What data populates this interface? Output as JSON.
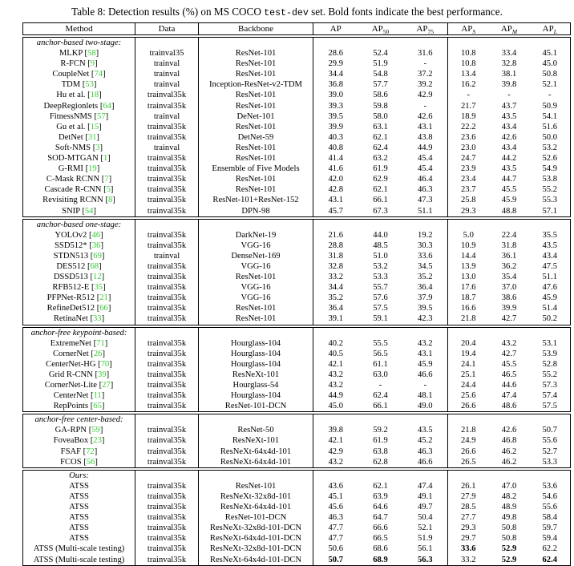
{
  "colors": {
    "citation_green": "#33cc33",
    "text": "#000000",
    "background": "#ffffff"
  },
  "title": {
    "prefix": "Table 8: Detection results (%) on MS COCO ",
    "code": "test-dev",
    "suffix": " set. Bold fonts indicate the best performance."
  },
  "table": {
    "headers": [
      {
        "text": "Method"
      },
      {
        "text": "Data"
      },
      {
        "text": "Backbone"
      },
      {
        "text": "AP",
        "sub": ""
      },
      {
        "text": "AP",
        "sub": "50",
        "italicSub": false
      },
      {
        "text": "AP",
        "sub": "75",
        "italicSub": false
      },
      {
        "text": "AP",
        "sub": "S",
        "italicSub": true
      },
      {
        "text": "AP",
        "sub": "M",
        "italicSub": true
      },
      {
        "text": "AP",
        "sub": "L",
        "italicSub": true
      }
    ],
    "sections": [
      {
        "label": "anchor-based two-stage:",
        "rows": [
          {
            "method": "MLKP",
            "cite": "58",
            "data": "trainval35",
            "backbone": "ResNet-101",
            "values": [
              "28.6",
              "52.4",
              "31.6",
              "10.8",
              "33.4",
              "45.1"
            ]
          },
          {
            "method": "R-FCN",
            "cite": "9",
            "data": "trainval",
            "backbone": "ResNet-101",
            "values": [
              "29.9",
              "51.9",
              "-",
              "10.8",
              "32.8",
              "45.0"
            ]
          },
          {
            "method": "CoupleNet",
            "cite": "74",
            "data": "trainval",
            "backbone": "ResNet-101",
            "values": [
              "34.4",
              "54.8",
              "37.2",
              "13.4",
              "38.1",
              "50.8"
            ]
          },
          {
            "method": "TDM",
            "cite": "53",
            "data": "trainval",
            "backbone": "Inception-ResNet-v2-TDM",
            "values": [
              "36.8",
              "57.7",
              "39.2",
              "16.2",
              "39.8",
              "52.1"
            ]
          },
          {
            "method": "Hu et al.",
            "cite": "18",
            "data": "trainval35k",
            "backbone": "ResNet-101",
            "values": [
              "39.0",
              "58.6",
              "42.9",
              "-",
              "-",
              "-"
            ]
          },
          {
            "method": "DeepRegionlets",
            "cite": "64",
            "data": "trainval35k",
            "backbone": "ResNet-101",
            "values": [
              "39.3",
              "59.8",
              "-",
              "21.7",
              "43.7",
              "50.9"
            ]
          },
          {
            "method": "FitnessNMS",
            "cite": "57",
            "data": "trainval",
            "backbone": "DeNet-101",
            "values": [
              "39.5",
              "58.0",
              "42.6",
              "18.9",
              "43.5",
              "54.1"
            ]
          },
          {
            "method": "Gu et al.",
            "cite": "15",
            "data": "trainval35k",
            "backbone": "ResNet-101",
            "values": [
              "39.9",
              "63.1",
              "43.1",
              "22.2",
              "43.4",
              "51.6"
            ]
          },
          {
            "method": "DetNet",
            "cite": "31",
            "data": "trainval35k",
            "backbone": "DetNet-59",
            "values": [
              "40.3",
              "62.1",
              "43.8",
              "23.6",
              "42.6",
              "50.0"
            ]
          },
          {
            "method": "Soft-NMS",
            "cite": "3",
            "data": "trainval",
            "backbone": "ResNet-101",
            "values": [
              "40.8",
              "62.4",
              "44.9",
              "23.0",
              "43.4",
              "53.2"
            ]
          },
          {
            "method": "SOD-MTGAN",
            "cite": "1",
            "data": "trainval35k",
            "backbone": "ResNet-101",
            "values": [
              "41.4",
              "63.2",
              "45.4",
              "24.7",
              "44.2",
              "52.6"
            ]
          },
          {
            "method": "G-RMI",
            "cite": "19",
            "data": "trainval35k",
            "backbone": "Ensemble of Five Models",
            "values": [
              "41.6",
              "61.9",
              "45.4",
              "23.9",
              "43.5",
              "54.9"
            ]
          },
          {
            "method": "C-Mask RCNN",
            "cite": "7",
            "data": "trainval35k",
            "backbone": "ResNet-101",
            "values": [
              "42.0",
              "62.9",
              "46.4",
              "23.4",
              "44.7",
              "53.8"
            ]
          },
          {
            "method": "Cascade R-CNN",
            "cite": "5",
            "data": "trainval35k",
            "backbone": "ResNet-101",
            "values": [
              "42.8",
              "62.1",
              "46.3",
              "23.7",
              "45.5",
              "55.2"
            ]
          },
          {
            "method": "Revisiting RCNN",
            "cite": "8",
            "data": "trainval35k",
            "backbone": "ResNet-101+ResNet-152",
            "values": [
              "43.1",
              "66.1",
              "47.3",
              "25.8",
              "45.9",
              "55.3"
            ]
          },
          {
            "method": "SNIP",
            "cite": "54",
            "data": "trainval35k",
            "backbone": "DPN-98",
            "values": [
              "45.7",
              "67.3",
              "51.1",
              "29.3",
              "48.8",
              "57.1"
            ]
          }
        ]
      },
      {
        "label": "anchor-based one-stage:",
        "rows": [
          {
            "method": "YOLOv2",
            "cite": "46",
            "data": "trainval35k",
            "backbone": "DarkNet-19",
            "values": [
              "21.6",
              "44.0",
              "19.2",
              "5.0",
              "22.4",
              "35.5"
            ]
          },
          {
            "method": "SSD512*",
            "cite": "36",
            "data": "trainval35k",
            "backbone": "VGG-16",
            "values": [
              "28.8",
              "48.5",
              "30.3",
              "10.9",
              "31.8",
              "43.5"
            ]
          },
          {
            "method": "STDN513",
            "cite": "69",
            "data": "trainval",
            "backbone": "DenseNet-169",
            "values": [
              "31.8",
              "51.0",
              "33.6",
              "14.4",
              "36.1",
              "43.4"
            ]
          },
          {
            "method": "DES512",
            "cite": "68",
            "data": "trainval35k",
            "backbone": "VGG-16",
            "values": [
              "32.8",
              "53.2",
              "34.5",
              "13.9",
              "36.2",
              "47.5"
            ]
          },
          {
            "method": "DSSD513",
            "cite": "12",
            "data": "trainval35k",
            "backbone": "ResNet-101",
            "values": [
              "33.2",
              "53.3",
              "35.2",
              "13.0",
              "35.4",
              "51.1"
            ]
          },
          {
            "method": "RFB512-E",
            "cite": "35",
            "data": "trainval35k",
            "backbone": "VGG-16",
            "values": [
              "34.4",
              "55.7",
              "36.4",
              "17.6",
              "37.0",
              "47.6"
            ]
          },
          {
            "method": "PFPNet-R512",
            "cite": "21",
            "data": "trainval35k",
            "backbone": "VGG-16",
            "values": [
              "35.2",
              "57.6",
              "37.9",
              "18.7",
              "38.6",
              "45.9"
            ]
          },
          {
            "method": "RefineDet512",
            "cite": "66",
            "data": "trainval35k",
            "backbone": "ResNet-101",
            "values": [
              "36.4",
              "57.5",
              "39.5",
              "16.6",
              "39.9",
              "51.4"
            ]
          },
          {
            "method": "RetinaNet",
            "cite": "33",
            "data": "trainval35k",
            "backbone": "ResNet-101",
            "values": [
              "39.1",
              "59.1",
              "42.3",
              "21.8",
              "42.7",
              "50.2"
            ]
          }
        ]
      },
      {
        "label": "anchor-free keypoint-based:",
        "rows": [
          {
            "method": "ExtremeNet",
            "cite": "71",
            "data": "trainval35k",
            "backbone": "Hourglass-104",
            "values": [
              "40.2",
              "55.5",
              "43.2",
              "20.4",
              "43.2",
              "53.1"
            ]
          },
          {
            "method": "CornerNet",
            "cite": "26",
            "data": "trainval35k",
            "backbone": "Hourglass-104",
            "values": [
              "40.5",
              "56.5",
              "43.1",
              "19.4",
              "42.7",
              "53.9"
            ]
          },
          {
            "method": "CenterNet-HG",
            "cite": "70",
            "data": "trainval35k",
            "backbone": "Hourglass-104",
            "values": [
              "42.1",
              "61.1",
              "45.9",
              "24.1",
              "45.5",
              "52.8"
            ]
          },
          {
            "method": "Grid R-CNN",
            "cite": "39",
            "data": "trainval35k",
            "backbone": "ResNeXt-101",
            "values": [
              "43.2",
              "63.0",
              "46.6",
              "25.1",
              "46.5",
              "55.2"
            ]
          },
          {
            "method": "CornerNet-Lite",
            "cite": "27",
            "data": "trainval35k",
            "backbone": "Hourglass-54",
            "values": [
              "43.2",
              "-",
              "-",
              "24.4",
              "44.6",
              "57.3"
            ]
          },
          {
            "method": "CenterNet",
            "cite": "11",
            "data": "trainval35k",
            "backbone": "Hourglass-104",
            "values": [
              "44.9",
              "62.4",
              "48.1",
              "25.6",
              "47.4",
              "57.4"
            ]
          },
          {
            "method": "RepPoints",
            "cite": "65",
            "data": "trainval35k",
            "backbone": "ResNet-101-DCN",
            "values": [
              "45.0",
              "66.1",
              "49.0",
              "26.6",
              "48.6",
              "57.5"
            ]
          }
        ]
      },
      {
        "label": "anchor-free center-based:",
        "rows": [
          {
            "method": "GA-RPN",
            "cite": "59",
            "data": "trainval35k",
            "backbone": "ResNet-50",
            "values": [
              "39.8",
              "59.2",
              "43.5",
              "21.8",
              "42.6",
              "50.7"
            ]
          },
          {
            "method": "FoveaBox",
            "cite": "23",
            "data": "trainval35k",
            "backbone": "ResNeXt-101",
            "values": [
              "42.1",
              "61.9",
              "45.2",
              "24.9",
              "46.8",
              "55.6"
            ]
          },
          {
            "method": "FSAF",
            "cite": "72",
            "data": "trainval35k",
            "backbone": "ResNeXt-64x4d-101",
            "values": [
              "42.9",
              "63.8",
              "46.3",
              "26.6",
              "46.2",
              "52.7"
            ]
          },
          {
            "method": "FCOS",
            "cite": "56",
            "data": "trainval35k",
            "backbone": "ResNeXt-64x4d-101",
            "values": [
              "43.2",
              "62.8",
              "46.6",
              "26.5",
              "46.2",
              "53.3"
            ]
          }
        ]
      },
      {
        "label": "Ours:",
        "rows": [
          {
            "method": "ATSS",
            "cite": null,
            "data": "trainval35k",
            "backbone": "ResNet-101",
            "values": [
              "43.6",
              "62.1",
              "47.4",
              "26.1",
              "47.0",
              "53.6"
            ]
          },
          {
            "method": "ATSS",
            "cite": null,
            "data": "trainval35k",
            "backbone": "ResNeXt-32x8d-101",
            "values": [
              "45.1",
              "63.9",
              "49.1",
              "27.9",
              "48.2",
              "54.6"
            ]
          },
          {
            "method": "ATSS",
            "cite": null,
            "data": "trainval35k",
            "backbone": "ResNeXt-64x4d-101",
            "values": [
              "45.6",
              "64.6",
              "49.7",
              "28.5",
              "48.9",
              "55.6"
            ]
          },
          {
            "method": "ATSS",
            "cite": null,
            "data": "trainval35k",
            "backbone": "ResNet-101-DCN",
            "values": [
              "46.3",
              "64.7",
              "50.4",
              "27.7",
              "49.8",
              "58.4"
            ]
          },
          {
            "method": "ATSS",
            "cite": null,
            "data": "trainval35k",
            "backbone": "ResNeXt-32x8d-101-DCN",
            "values": [
              "47.7",
              "66.6",
              "52.1",
              "29.3",
              "50.8",
              "59.7"
            ]
          },
          {
            "method": "ATSS",
            "cite": null,
            "data": "trainval35k",
            "backbone": "ResNeXt-64x4d-101-DCN",
            "values": [
              "47.7",
              "66.5",
              "51.9",
              "29.7",
              "50.8",
              "59.4"
            ]
          },
          {
            "method": "ATSS (Multi-scale testing)",
            "cite": null,
            "data": "trainval35k",
            "backbone": "ResNeXt-32x8d-101-DCN",
            "values": [
              "50.6",
              "68.6",
              "56.1",
              "33.6",
              "52.9",
              "62.2"
            ],
            "bold": [
              3,
              4
            ]
          },
          {
            "method": "ATSS (Multi-scale testing)",
            "cite": null,
            "data": "trainval35k",
            "backbone": "ResNeXt-64x4d-101-DCN",
            "values": [
              "50.7",
              "68.9",
              "56.3",
              "33.2",
              "52.9",
              "62.4"
            ],
            "bold": [
              0,
              1,
              2,
              4,
              5
            ]
          }
        ]
      }
    ]
  }
}
